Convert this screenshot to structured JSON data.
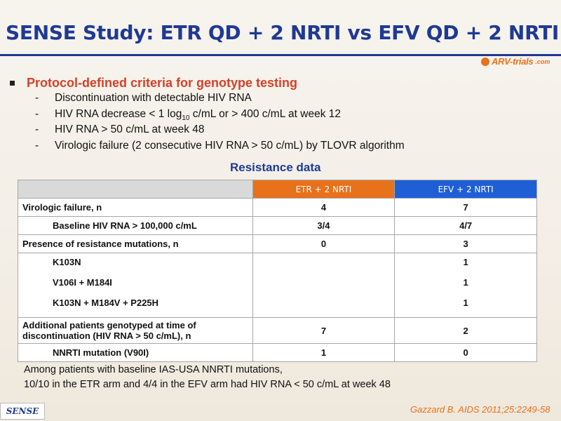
{
  "title": "SENSE Study: ETR QD + 2 NRTI vs EFV QD + 2 NRTI",
  "logo": {
    "name": "ARV-trials",
    "suffix": ".com",
    "accent": "#e8711c"
  },
  "colors": {
    "title": "#1f3a93",
    "bullet": "#d6402a",
    "etr_header": "#e8711c",
    "efv_header": "#1f5fd6"
  },
  "bullet": "Protocol-defined criteria for genotype testing",
  "criteria": [
    {
      "pre": "Discontinuation with detectable HIV RNA"
    },
    {
      "pre": "HIV RNA decrease < 1 log",
      "sub": "10",
      "post": " c/mL or > 400 c/mL at week 12"
    },
    {
      "pre": "HIV RNA > 50 c/mL at week 48"
    },
    {
      "pre": "Virologic failure (2 consecutive HIV RNA > 50 c/mL) by TLOVR algorithm"
    }
  ],
  "resistance_title": "Resistance data",
  "table": {
    "headers": [
      "",
      "ETR + 2 NRTI",
      "EFV + 2 NRTI"
    ],
    "rows": [
      {
        "label": "Virologic failure, n",
        "etr": "4",
        "efv": "7"
      },
      {
        "label": "Baseline HIV RNA > 100,000 c/mL",
        "etr": "3/4",
        "efv": "4/7"
      },
      {
        "label": "Presence of resistance mutations, n",
        "etr": "0",
        "efv": "3"
      },
      {
        "label": "K103N",
        "etr": "",
        "efv": "1"
      },
      {
        "label": "V106I + M184I",
        "etr": "",
        "efv": "1"
      },
      {
        "label": "K103N + M184V + P225H",
        "etr": "",
        "efv": "1"
      },
      {
        "label": "Additional patients genotyped at time of discontinuation (HIV RNA > 50 c/mL), n",
        "etr": "7",
        "efv": "2"
      },
      {
        "label": "NNRTI mutation (V90I)",
        "etr": "1",
        "efv": "0"
      }
    ]
  },
  "footnote": [
    "Among patients with baseline IAS-USA NNRTI mutations,",
    "10/10 in the ETR arm and 4/4 in the EFV arm had HIV RNA < 50 c/mL at week 48"
  ],
  "badge": "SENSE",
  "citation": "Gazzard B. AIDS 2011;25:2249-58"
}
